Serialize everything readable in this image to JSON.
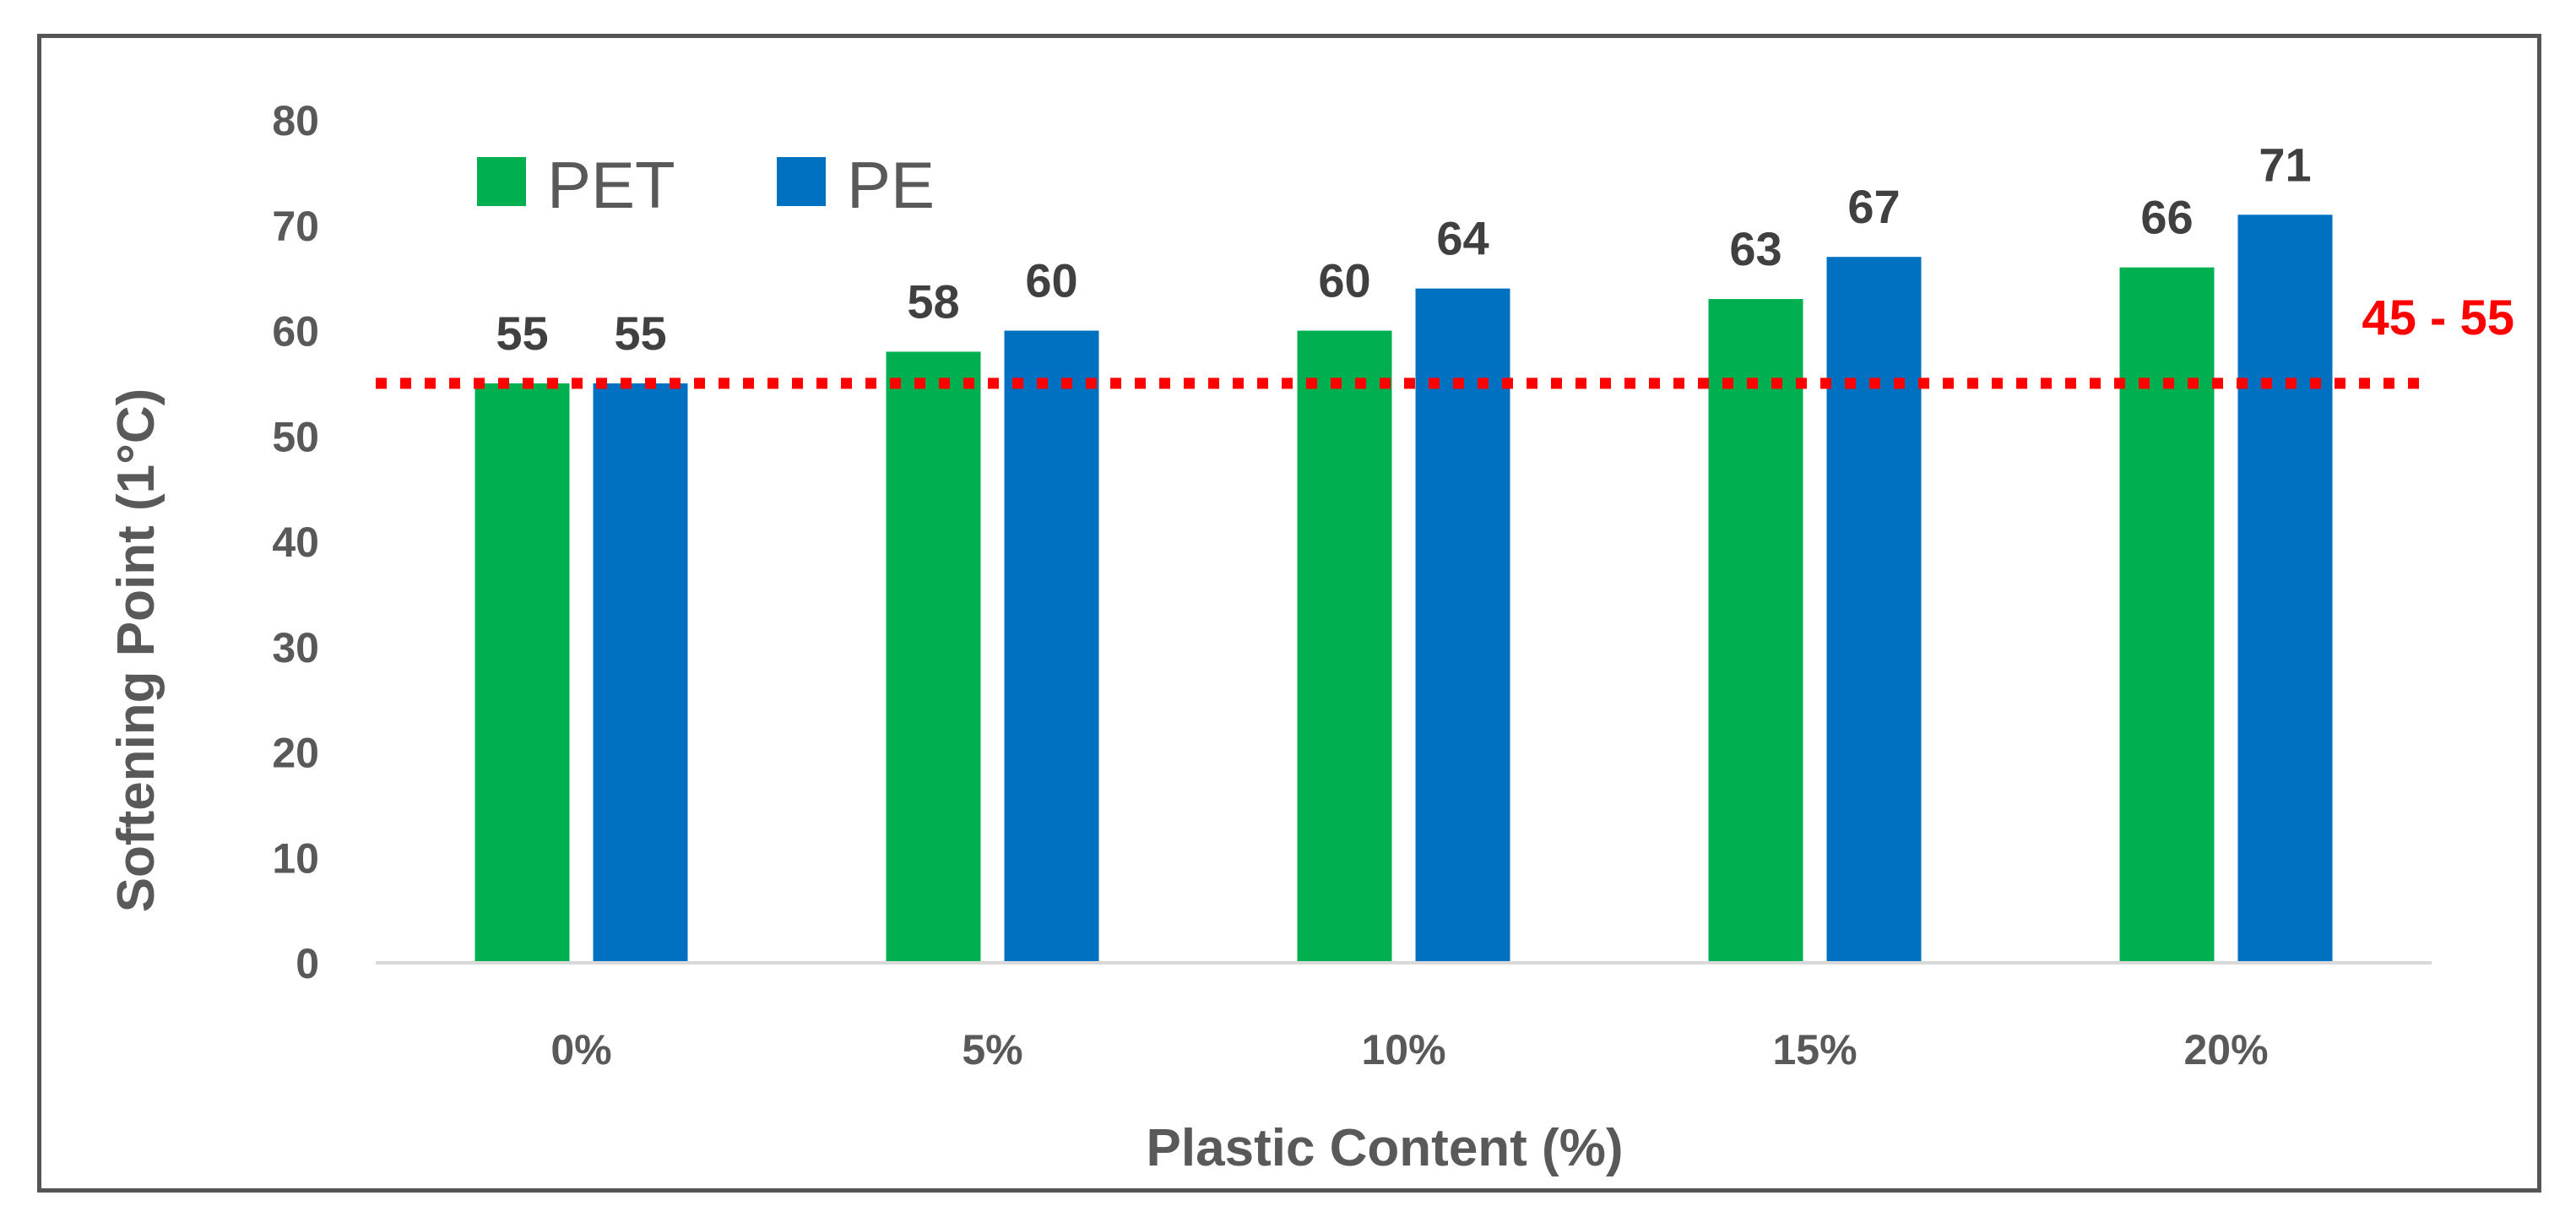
{
  "chart_data": {
    "type": "bar",
    "title": "",
    "xlabel": "Plastic Content (%)",
    "ylabel": "Softening Point (1°C)",
    "categories": [
      "0%",
      "5%",
      "10%",
      "15%",
      "20%"
    ],
    "series": [
      {
        "name": "PET",
        "color": "#00B050",
        "values": [
          55,
          58,
          60,
          63,
          66
        ]
      },
      {
        "name": "PE",
        "color": "#0070C0",
        "values": [
          55,
          60,
          64,
          67,
          71
        ]
      }
    ],
    "ylim": [
      0,
      80
    ],
    "yticks": [
      0,
      10,
      20,
      30,
      40,
      50,
      60,
      70,
      80
    ],
    "grid": false,
    "legend_position": "top-left",
    "reference_line": {
      "value": 55,
      "label": "45 - 55",
      "color": "#FF0000",
      "style": "dotted"
    }
  }
}
